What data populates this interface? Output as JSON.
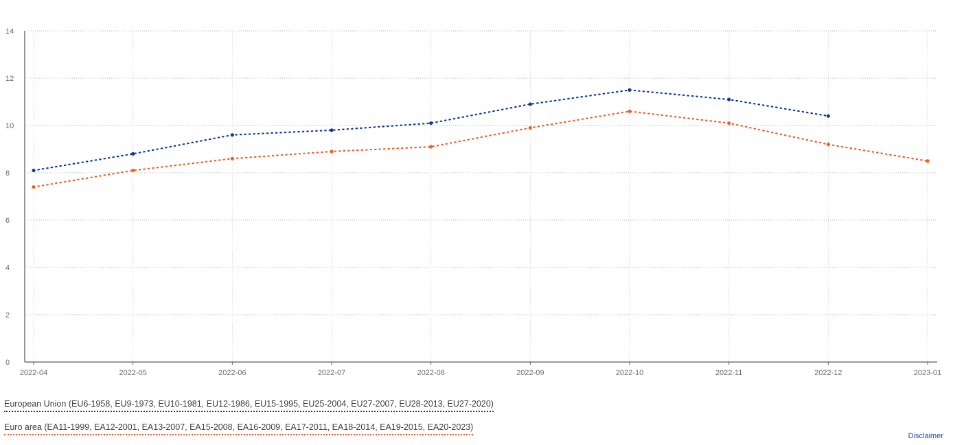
{
  "chart_data": {
    "type": "line",
    "x": [
      "2022-04",
      "2022-05",
      "2022-06",
      "2022-07",
      "2022-08",
      "2022-09",
      "2022-10",
      "2022-11",
      "2022-12",
      "2023-01"
    ],
    "yticks": [
      "0",
      "2",
      "4",
      "6",
      "8",
      "10",
      "12",
      "14"
    ],
    "ylim": [
      0,
      14
    ],
    "grid": true,
    "legend_position": "bottom-left",
    "series": [
      {
        "name": "European Union (EU6-1958, EU9-1973, EU10-1981, EU12-1986, EU15-1995, EU25-2004, EU27-2007, EU28-2013, EU27-2020)",
        "color": "#0e3c8f",
        "values": [
          8.1,
          8.8,
          9.6,
          9.8,
          10.1,
          10.9,
          11.5,
          11.1,
          10.4,
          null
        ]
      },
      {
        "name": "Euro area (EA11-1999, EA12-2001, EA13-2007, EA15-2008, EA16-2009, EA17-2011, EA18-2014, EA19-2015, EA20-2023)",
        "color": "#e8622c",
        "values": [
          7.4,
          8.1,
          8.6,
          8.9,
          9.1,
          9.9,
          10.6,
          10.1,
          9.2,
          8.5
        ]
      }
    ]
  },
  "footer": {
    "disclaimer": "Disclaimer"
  }
}
